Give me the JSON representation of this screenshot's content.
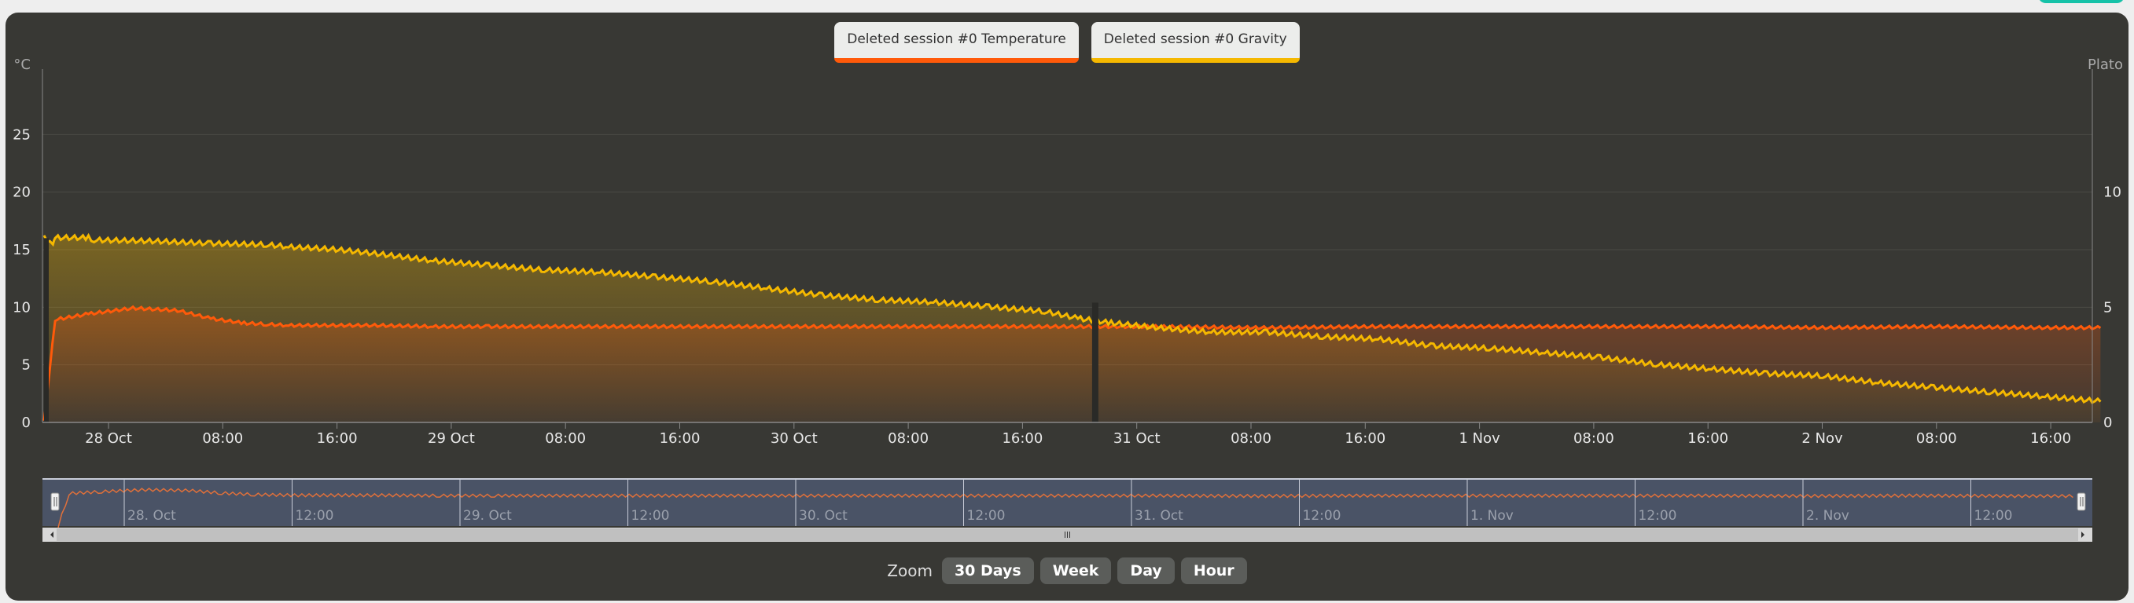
{
  "chart_data": {
    "type": "line",
    "y_left_unit": "°C",
    "y_right_unit": "Plato",
    "ylim_left": [
      0,
      30
    ],
    "ylim_right": [
      0,
      15
    ],
    "y_left_ticks": [
      0,
      5,
      10,
      15,
      20,
      25
    ],
    "y_right_ticks": [
      0,
      5,
      10
    ],
    "x_tick_labels": [
      "28 Oct",
      "08:00",
      "16:00",
      "29 Oct",
      "08:00",
      "16:00",
      "30 Oct",
      "08:00",
      "16:00",
      "31 Oct",
      "08:00",
      "16:00",
      "1 Nov",
      "08:00",
      "16:00",
      "2 Nov",
      "08:00",
      "16:00"
    ],
    "navigator_labels": [
      "28. Oct",
      "12:00",
      "29. Oct",
      "12:00",
      "30. Oct",
      "12:00",
      "31. Oct",
      "12:00",
      "1. Nov",
      "12:00",
      "2. Nov",
      "12:00"
    ],
    "series": [
      {
        "name": "Deleted session #0 Temperature",
        "axis": "left",
        "color": "#ff5a0a",
        "x": [
          0,
          0.1,
          0.4,
          0.8,
          1.2,
          1.5,
          1.8,
          2.0,
          2.2,
          2.6,
          3.0,
          3.5,
          4.0,
          5.0,
          6.0,
          7.0,
          8.0,
          9.0,
          10.0,
          11.0,
          12.0,
          13.0,
          14.0,
          15.0,
          16.0,
          17.0,
          18.0,
          18.5
        ],
        "values": [
          0,
          8.9,
          9.4,
          9.9,
          9.7,
          9.0,
          8.6,
          8.5,
          8.4,
          8.4,
          8.4,
          8.3,
          8.3,
          8.3,
          8.3,
          8.3,
          8.3,
          8.3,
          8.3,
          8.2,
          8.3,
          8.3,
          8.3,
          8.3,
          8.2,
          8.3,
          8.2,
          8.2
        ]
      },
      {
        "name": "Deleted session #0 Gravity",
        "axis": "right",
        "color": "#f5b800",
        "x": [
          0,
          0.08,
          0.1,
          0.4,
          0.45,
          1.0,
          1.5,
          2.0,
          2.2,
          2.6,
          3.0,
          3.5,
          4.0,
          4.5,
          5.0,
          5.5,
          6.0,
          6.5,
          7.0,
          7.5,
          8.0,
          8.5,
          9.0,
          9.3,
          9.6,
          10.0,
          10.5,
          11.0,
          11.5,
          12.0,
          12.5,
          13.0,
          13.5,
          14.0,
          14.5,
          15.0,
          15.5,
          16.0,
          16.5,
          17.0,
          17.5,
          18.0,
          18.5
        ],
        "values": [
          8.0,
          7.8,
          8.0,
          8.0,
          7.9,
          7.85,
          7.75,
          7.7,
          7.6,
          7.5,
          7.3,
          7.0,
          6.8,
          6.6,
          6.5,
          6.3,
          6.1,
          5.8,
          5.5,
          5.3,
          5.2,
          5.0,
          4.8,
          4.5,
          4.3,
          4.1,
          3.9,
          3.9,
          3.7,
          3.6,
          3.3,
          3.2,
          3.0,
          2.8,
          2.5,
          2.3,
          2.1,
          2.0,
          1.7,
          1.5,
          1.3,
          1.1,
          0.9
        ]
      }
    ],
    "legend_placement": "top-center",
    "grid": true
  },
  "zoom": {
    "label": "Zoom",
    "buttons": [
      "30 Days",
      "Week",
      "Day",
      "Hour"
    ]
  }
}
